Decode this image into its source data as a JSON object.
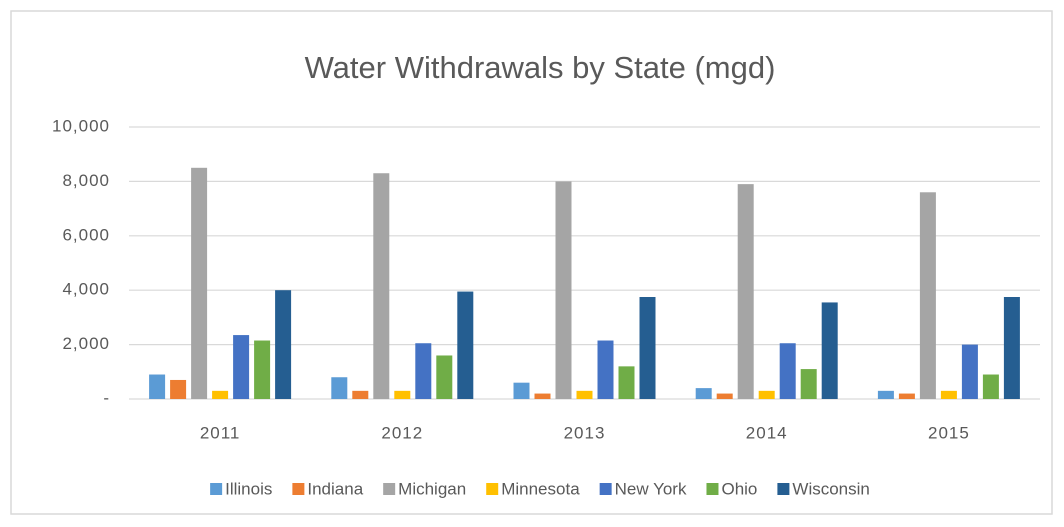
{
  "chart_data": {
    "type": "bar",
    "title": "Water Withdrawals by State (mgd)",
    "categories": [
      "2011",
      "2012",
      "2013",
      "2014",
      "2015"
    ],
    "series": [
      {
        "name": "Illinois",
        "color": "#5b9bd5",
        "values": [
          900,
          800,
          600,
          400,
          300
        ]
      },
      {
        "name": "Indiana",
        "color": "#ed7d31",
        "values": [
          700,
          300,
          200,
          200,
          200
        ]
      },
      {
        "name": "Michigan",
        "color": "#a5a5a5",
        "values": [
          8500,
          8300,
          8000,
          7900,
          7600
        ]
      },
      {
        "name": "Minnesota",
        "color": "#ffc000",
        "values": [
          300,
          300,
          300,
          300,
          300
        ]
      },
      {
        "name": "New York",
        "color": "#4472c4",
        "values": [
          2350,
          2050,
          2150,
          2050,
          2000
        ]
      },
      {
        "name": "Ohio",
        "color": "#70ad47",
        "values": [
          2150,
          1600,
          1200,
          1100,
          900
        ]
      },
      {
        "name": "Wisconsin",
        "color": "#255e91",
        "values": [
          4000,
          3950,
          3750,
          3550,
          3750
        ]
      }
    ],
    "ylim": [
      0,
      10000
    ],
    "yticks": [
      {
        "value": 0,
        "label": "-"
      },
      {
        "value": 2000,
        "label": "2,000"
      },
      {
        "value": 4000,
        "label": "4,000"
      },
      {
        "value": 6000,
        "label": "6,000"
      },
      {
        "value": 8000,
        "label": "8,000"
      },
      {
        "value": 10000,
        "label": "10,000"
      }
    ],
    "grid": true,
    "legend": "bottom"
  }
}
